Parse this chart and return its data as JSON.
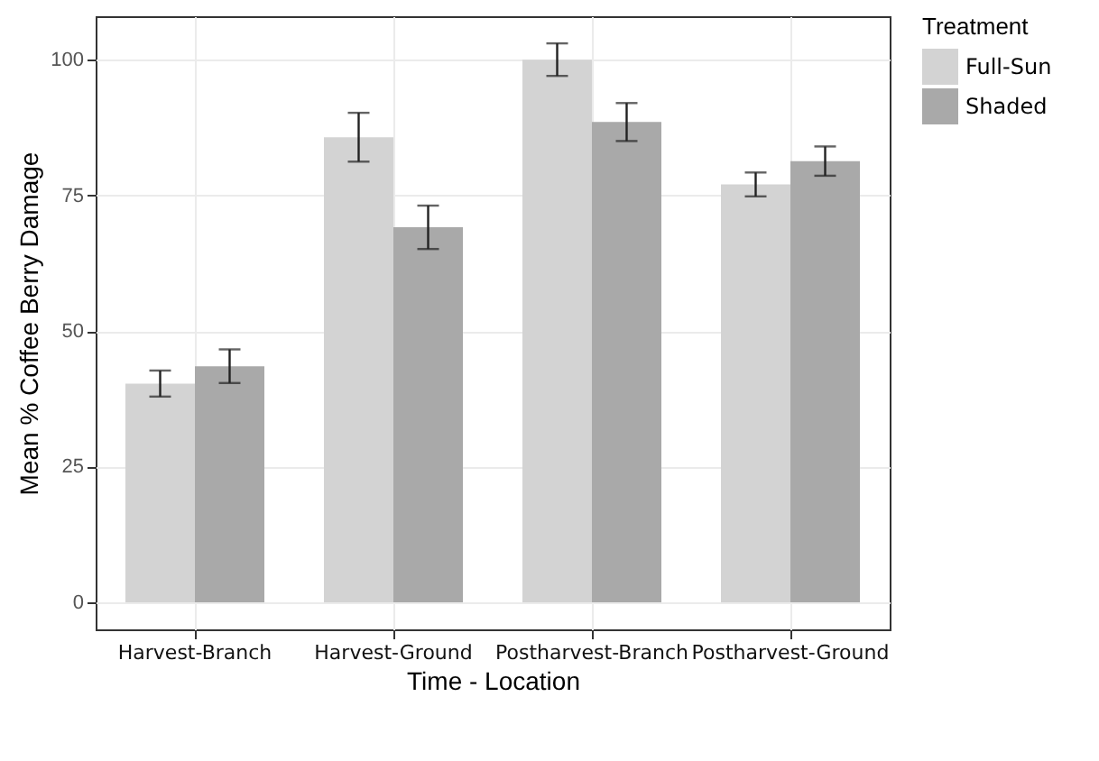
{
  "chart_data": {
    "type": "bar",
    "xlabel": "Time - Location",
    "ylabel": "Mean % Coffee Berry Damage",
    "legend_title": "Treatment",
    "categories": [
      "Harvest-Branch",
      "Harvest-Ground",
      "Postharvest-Branch",
      "Postharvest-Ground"
    ],
    "series": [
      {
        "name": "Full-Sun",
        "color": "#d3d3d3",
        "values": [
          40.3,
          85.7,
          100,
          77.0
        ],
        "errors": [
          2.4,
          4.5,
          3,
          2.2
        ]
      },
      {
        "name": "Shaded",
        "color": "#a9a9a9",
        "values": [
          43.5,
          69.1,
          88.5,
          81.3
        ],
        "errors": [
          3.1,
          4,
          3.5,
          2.7
        ]
      }
    ],
    "ylim": [
      -5,
      108
    ],
    "yticks": [
      0,
      25,
      50,
      75,
      100
    ],
    "grid": true,
    "legend": "right"
  }
}
